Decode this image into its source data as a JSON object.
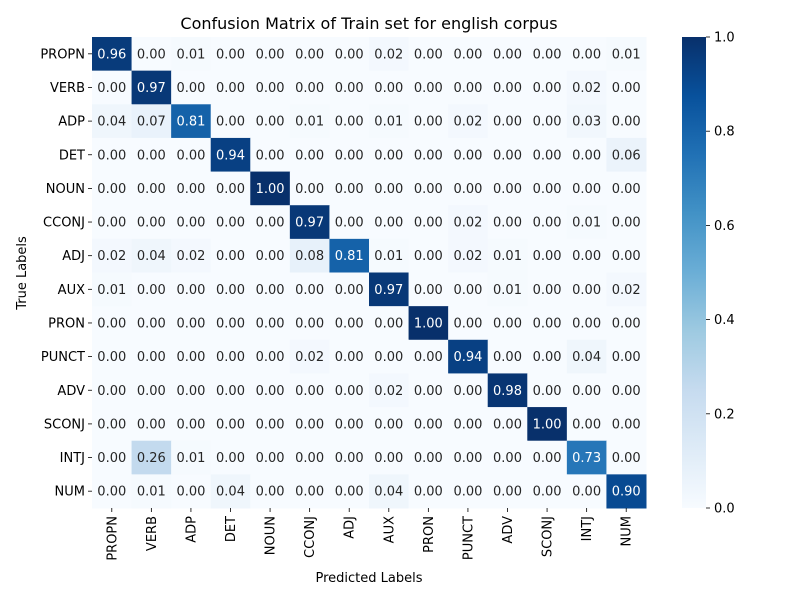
{
  "chart_data": {
    "type": "heatmap",
    "title": "Confusion Matrix of Train set for english corpus",
    "xlabel": "Predicted Labels",
    "ylabel": "True Labels",
    "x_categories": [
      "PROPN",
      "VERB",
      "ADP",
      "DET",
      "NOUN",
      "CCONJ",
      "ADJ",
      "AUX",
      "PRON",
      "PUNCT",
      "ADV",
      "SCONJ",
      "INTJ",
      "NUM"
    ],
    "y_categories": [
      "PROPN",
      "VERB",
      "ADP",
      "DET",
      "NOUN",
      "CCONJ",
      "ADJ",
      "AUX",
      "PRON",
      "PUNCT",
      "ADV",
      "SCONJ",
      "INTJ",
      "NUM"
    ],
    "values": [
      [
        0.96,
        0.0,
        0.01,
        0.0,
        0.0,
        0.0,
        0.0,
        0.02,
        0.0,
        0.0,
        0.0,
        0.0,
        0.0,
        0.01
      ],
      [
        0.0,
        0.97,
        0.0,
        0.0,
        0.0,
        0.0,
        0.0,
        0.0,
        0.0,
        0.0,
        0.0,
        0.0,
        0.02,
        0.0
      ],
      [
        0.04,
        0.07,
        0.81,
        0.0,
        0.0,
        0.01,
        0.0,
        0.01,
        0.0,
        0.02,
        0.0,
        0.0,
        0.03,
        0.0
      ],
      [
        0.0,
        0.0,
        0.0,
        0.94,
        0.0,
        0.0,
        0.0,
        0.0,
        0.0,
        0.0,
        0.0,
        0.0,
        0.0,
        0.06
      ],
      [
        0.0,
        0.0,
        0.0,
        0.0,
        1.0,
        0.0,
        0.0,
        0.0,
        0.0,
        0.0,
        0.0,
        0.0,
        0.0,
        0.0
      ],
      [
        0.0,
        0.0,
        0.0,
        0.0,
        0.0,
        0.97,
        0.0,
        0.0,
        0.0,
        0.02,
        0.0,
        0.0,
        0.01,
        0.0
      ],
      [
        0.02,
        0.04,
        0.02,
        0.0,
        0.0,
        0.08,
        0.81,
        0.01,
        0.0,
        0.02,
        0.01,
        0.0,
        0.0,
        0.0
      ],
      [
        0.01,
        0.0,
        0.0,
        0.0,
        0.0,
        0.0,
        0.0,
        0.97,
        0.0,
        0.0,
        0.01,
        0.0,
        0.0,
        0.02
      ],
      [
        0.0,
        0.0,
        0.0,
        0.0,
        0.0,
        0.0,
        0.0,
        0.0,
        1.0,
        0.0,
        0.0,
        0.0,
        0.0,
        0.0
      ],
      [
        0.0,
        0.0,
        0.0,
        0.0,
        0.0,
        0.02,
        0.0,
        0.0,
        0.0,
        0.94,
        0.0,
        0.0,
        0.04,
        0.0
      ],
      [
        0.0,
        0.0,
        0.0,
        0.0,
        0.0,
        0.0,
        0.0,
        0.02,
        0.0,
        0.0,
        0.98,
        0.0,
        0.0,
        0.0
      ],
      [
        0.0,
        0.0,
        0.0,
        0.0,
        0.0,
        0.0,
        0.0,
        0.0,
        0.0,
        0.0,
        0.0,
        1.0,
        0.0,
        0.0
      ],
      [
        0.0,
        0.26,
        0.01,
        0.0,
        0.0,
        0.0,
        0.0,
        0.0,
        0.0,
        0.0,
        0.0,
        0.0,
        0.73,
        0.0
      ],
      [
        0.0,
        0.01,
        0.0,
        0.04,
        0.0,
        0.0,
        0.0,
        0.04,
        0.0,
        0.0,
        0.0,
        0.0,
        0.0,
        0.9
      ]
    ],
    "value_format": "0.00",
    "colormap": "Blues",
    "colorbar": {
      "range": [
        0.0,
        1.0
      ],
      "ticks": [
        0.0,
        0.2,
        0.4,
        0.6,
        0.8,
        1.0
      ]
    },
    "colors": {
      "low": "#f7fbff",
      "high": "#08306b"
    }
  }
}
